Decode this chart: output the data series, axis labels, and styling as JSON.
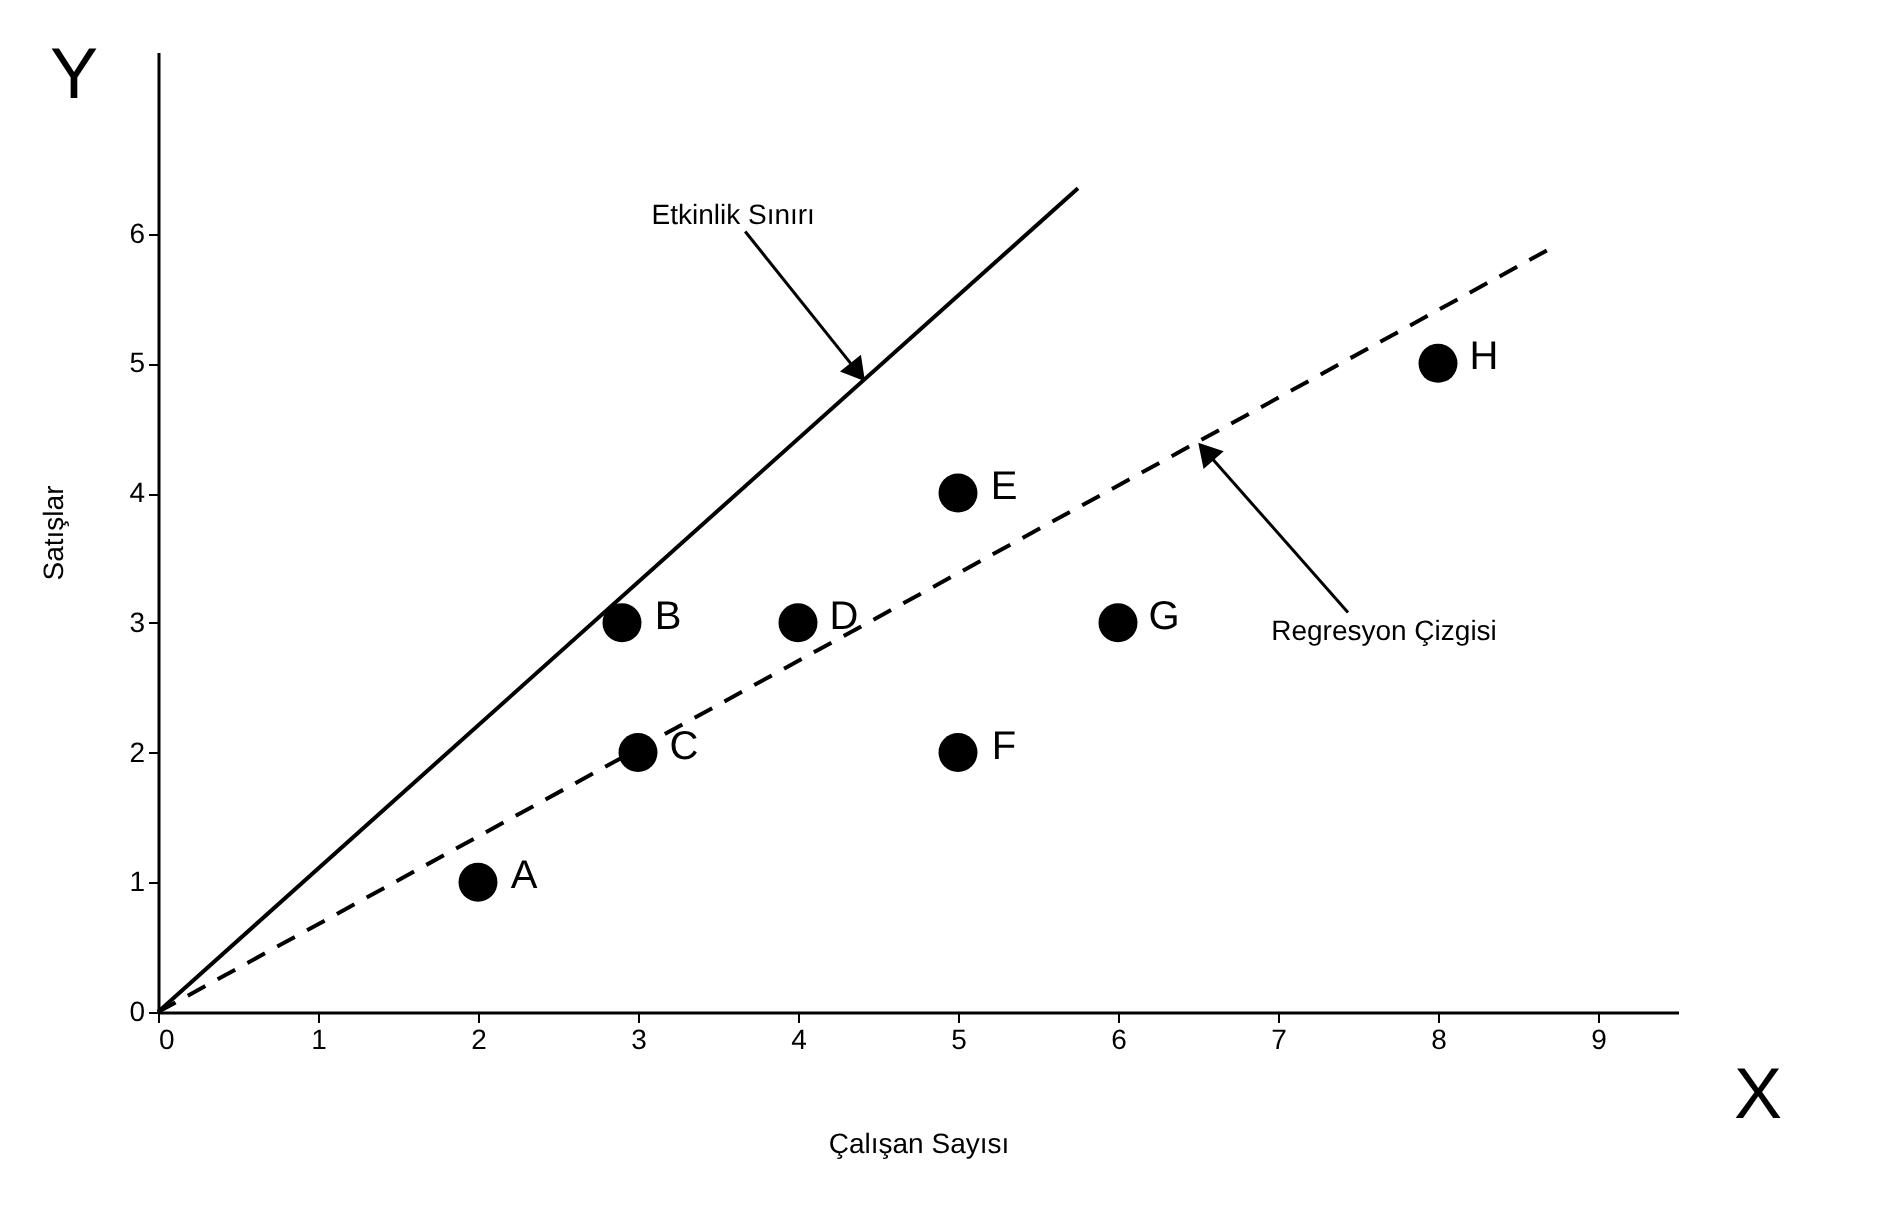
{
  "chart_data": {
    "type": "scatter",
    "xlabel": "Çalışan Sayısı",
    "ylabel": "Satışlar",
    "xlim": [
      0,
      9.5
    ],
    "ylim": [
      0,
      7.4
    ],
    "xticks": [
      0,
      1,
      2,
      3,
      4,
      5,
      6,
      7,
      8,
      9
    ],
    "yticks": [
      0,
      1,
      2,
      3,
      4,
      5,
      6
    ],
    "grid": false,
    "marker": "circle",
    "series": [
      {
        "type": "scatter",
        "color": "#000000",
        "x": [
          2,
          2.9,
          3,
          4,
          5,
          5,
          6,
          8
        ],
        "values": [
          1,
          3,
          2,
          3,
          4,
          2,
          3,
          5
        ]
      },
      {
        "type": "line",
        "color": "#000000",
        "line_style": "solid",
        "marker": "none",
        "x": [
          0,
          5.75
        ],
        "values": [
          0,
          6.35
        ]
      },
      {
        "type": "line",
        "color": "#000000",
        "line_style": "dashed",
        "marker": "none",
        "x": [
          0,
          8.68
        ],
        "values": [
          0,
          5.87
        ]
      }
    ],
    "annotations": [
      {
        "text": "A",
        "x": 2,
        "y": 1
      },
      {
        "text": "B",
        "x": 2.9,
        "y": 3
      },
      {
        "text": "C",
        "x": 3,
        "y": 2
      },
      {
        "text": "D",
        "x": 4,
        "y": 3
      },
      {
        "text": "E",
        "x": 5,
        "y": 4
      },
      {
        "text": "F",
        "x": 5,
        "y": 2
      },
      {
        "text": "G",
        "x": 6,
        "y": 3
      },
      {
        "text": "H",
        "x": 8,
        "y": 5
      },
      {
        "text": "Etkinlik Sınırı",
        "x": 4.42,
        "y": 4.86
      },
      {
        "text": "Regresyon Çizgisi",
        "x": 6.5,
        "y": 4.39
      },
      "X",
      "Y"
    ]
  }
}
